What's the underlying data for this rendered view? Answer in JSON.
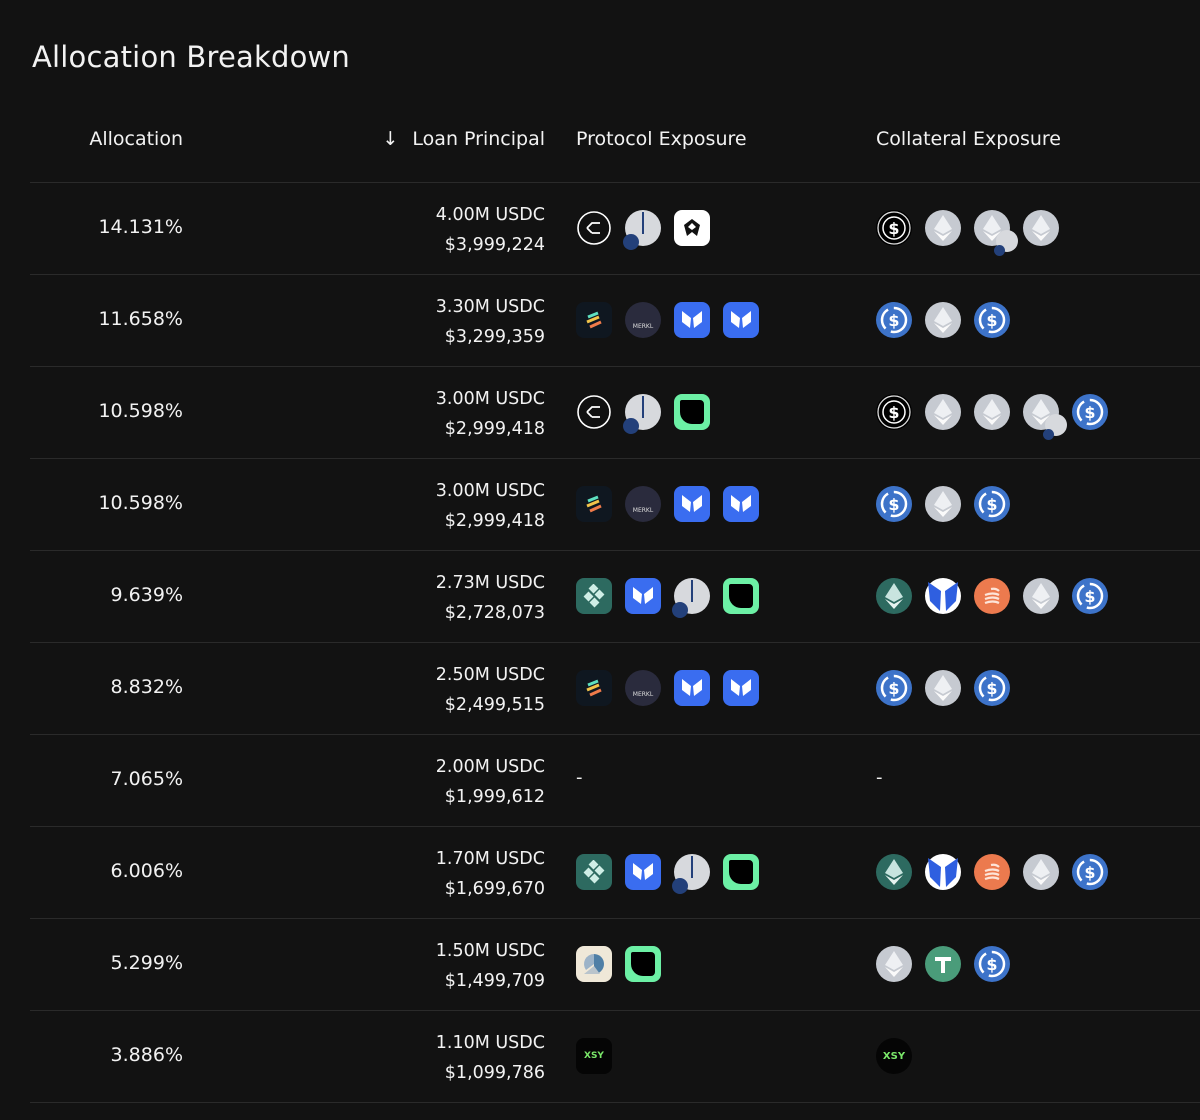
{
  "title": "Allocation Breakdown",
  "columns": {
    "allocation": "Allocation",
    "sort_icon": "arrow-down-icon",
    "loan": "Loan Principal",
    "protocol": "Protocol Exposure",
    "collateral": "Collateral Exposure"
  },
  "colors": {
    "background": "#121212",
    "usdc": "#3d73c9",
    "eth": "#c6cad1",
    "morpho": "#3a6df0",
    "green": "#6cf0a5"
  },
  "rows": [
    {
      "allocation": "14.131%",
      "amount": "4.00M USDC",
      "usd": "$3,999,224",
      "protocols": [
        "euler",
        "pie",
        "gem"
      ],
      "collateral": [
        "usds",
        "eth",
        "eth-pie",
        "eth"
      ]
    },
    {
      "allocation": "11.658%",
      "amount": "3.30M USDC",
      "usd": "$3,299,359",
      "protocols": [
        "stripes",
        "merkl",
        "morpho",
        "morpho"
      ],
      "collateral": [
        "usdc",
        "eth",
        "usdc"
      ]
    },
    {
      "allocation": "10.598%",
      "amount": "3.00M USDC",
      "usd": "$2,999,418",
      "protocols": [
        "euler",
        "pie",
        "green-square"
      ],
      "collateral": [
        "usds",
        "eth",
        "eth",
        "eth-pie",
        "usdc"
      ]
    },
    {
      "allocation": "10.598%",
      "amount": "3.00M USDC",
      "usd": "$2,999,418",
      "protocols": [
        "stripes",
        "merkl",
        "morpho",
        "morpho"
      ],
      "collateral": [
        "usdc",
        "eth",
        "usdc"
      ]
    },
    {
      "allocation": "9.639%",
      "amount": "2.73M USDC",
      "usd": "$2,728,073",
      "protocols": [
        "teal-square",
        "morpho",
        "pie",
        "green-square"
      ],
      "collateral": [
        "eth-teal",
        "morpho-circle",
        "orange-coin",
        "eth",
        "usdc"
      ]
    },
    {
      "allocation": "8.832%",
      "amount": "2.50M USDC",
      "usd": "$2,499,515",
      "protocols": [
        "stripes",
        "merkl",
        "morpho",
        "morpho"
      ],
      "collateral": [
        "usdc",
        "eth",
        "usdc"
      ]
    },
    {
      "allocation": "7.065%",
      "amount": "2.00M USDC",
      "usd": "$1,999,612",
      "protocols": [],
      "collateral": [],
      "empty": "-"
    },
    {
      "allocation": "6.006%",
      "amount": "1.70M USDC",
      "usd": "$1,699,670",
      "protocols": [
        "teal-square",
        "morpho",
        "pie",
        "green-square"
      ],
      "collateral": [
        "eth-teal",
        "morpho-circle",
        "orange-coin",
        "eth",
        "usdc"
      ]
    },
    {
      "allocation": "5.299%",
      "amount": "1.50M USDC",
      "usd": "$1,499,709",
      "protocols": [
        "chart-square",
        "green-square"
      ],
      "collateral": [
        "eth",
        "usdt",
        "usdc"
      ]
    },
    {
      "allocation": "3.886%",
      "amount": "1.10M USDC",
      "usd": "$1,099,786",
      "protocols": [
        "xsy-square"
      ],
      "collateral": [
        "xsy-circle"
      ],
      "xsy_text": "XSY"
    }
  ]
}
